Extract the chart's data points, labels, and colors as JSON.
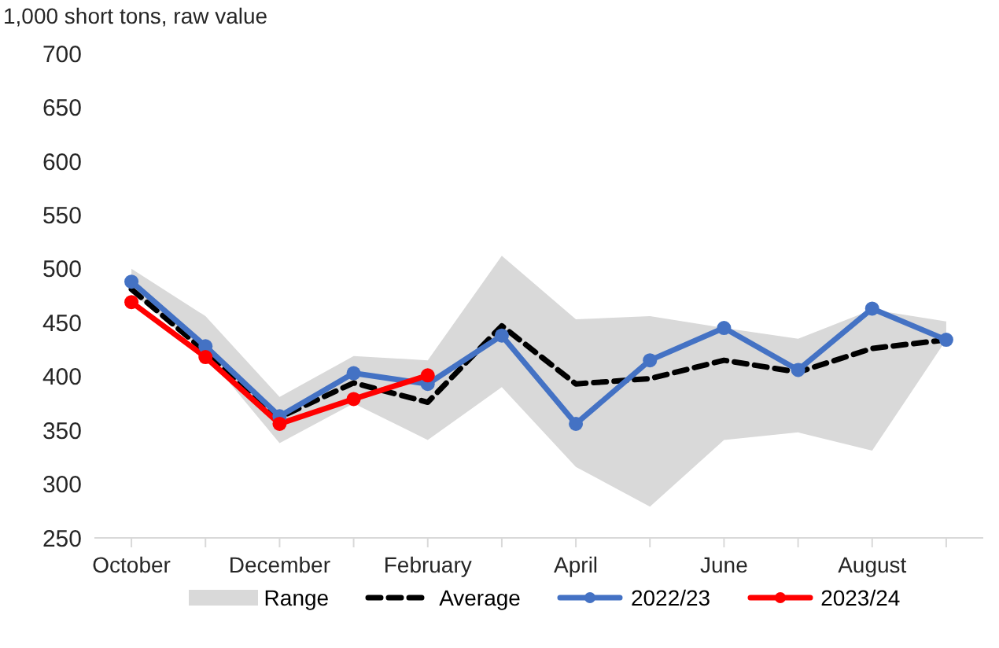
{
  "chart_data": {
    "type": "line",
    "ylabel": "1,000 short tons, raw value",
    "annotations": [
      "Range"
    ],
    "categories": [
      "October",
      null,
      "December",
      null,
      "February",
      null,
      "April",
      null,
      "June",
      null,
      "August",
      null
    ],
    "ylim": [
      250,
      700
    ],
    "yticks": [
      250,
      300,
      350,
      400,
      450,
      500,
      550,
      600,
      650,
      700
    ],
    "grid": false,
    "legend": "bottom",
    "marker": "circle",
    "series": [
      {
        "name": "Average",
        "color": "#000000",
        "line_style": "dashed",
        "marker": "none",
        "values": [
          481,
          423,
          362,
          394,
          376,
          447,
          393,
          398,
          415,
          404,
          426,
          434
        ],
        "lower": [
          478,
          421,
          338,
          375,
          341,
          390,
          316,
          279,
          341,
          348,
          331,
          434
        ],
        "upper": [
          500,
          456,
          381,
          419,
          415,
          512,
          453,
          456,
          445,
          435,
          462,
          451
        ]
      },
      {
        "name": "2022/23",
        "color": "#4472c4",
        "values": [
          488,
          428,
          363,
          403,
          393,
          438,
          356,
          415,
          445,
          406,
          463,
          434
        ]
      },
      {
        "name": "2023/24",
        "color": "#ff0000",
        "values": [
          469,
          418,
          356,
          379,
          401,
          null,
          null,
          null,
          null,
          null,
          null,
          null
        ]
      }
    ]
  }
}
